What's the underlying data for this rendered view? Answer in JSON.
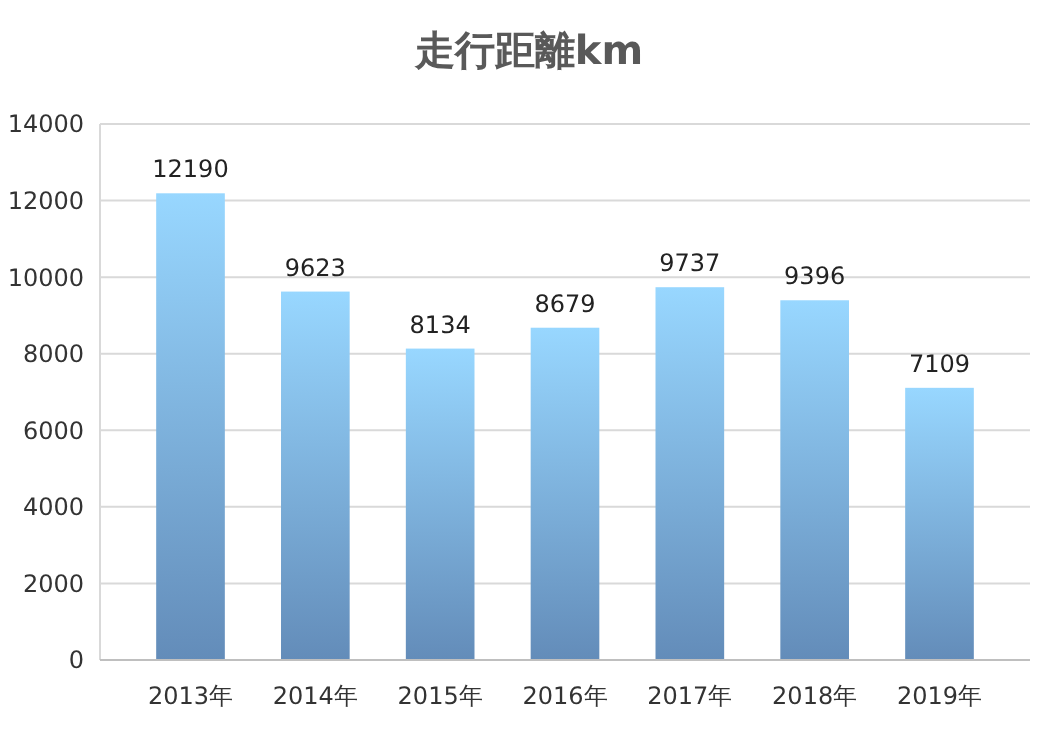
{
  "chart_data": {
    "type": "bar",
    "title": "走行距離km",
    "categories": [
      "2013年",
      "2014年",
      "2015年",
      "2016年",
      "2017年",
      "2018年",
      "2019年"
    ],
    "values": [
      12190,
      9623,
      8134,
      8679,
      9737,
      9396,
      7109
    ],
    "color": "#7fb4ee",
    "ylim": [
      0,
      14000
    ],
    "yticks": [
      0,
      2000,
      4000,
      6000,
      8000,
      10000,
      12000,
      14000
    ],
    "grid": "y",
    "data_labels": true
  }
}
